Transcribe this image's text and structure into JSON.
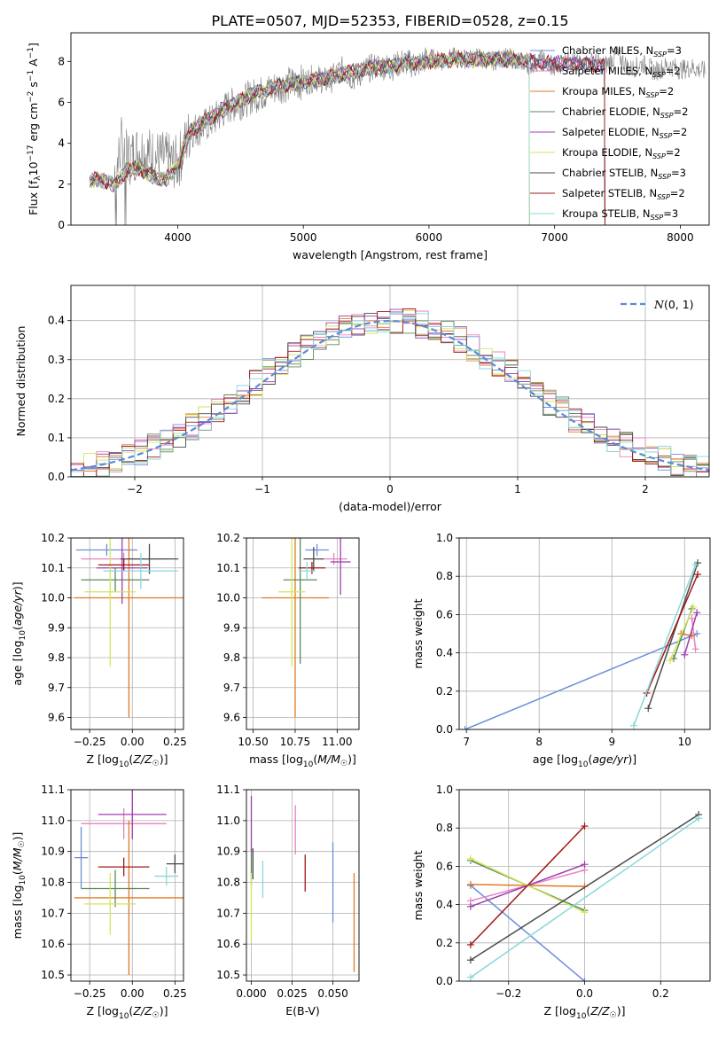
{
  "figure_title": "PLATE=0507, MJD=52353, FIBERID=0528, z=0.15",
  "colors": {
    "Chabrier MILES": "#6d8fd8",
    "Salpeter MILES": "#e882c0",
    "Kroupa MILES": "#e07a25",
    "Chabrier ELODIE": "#5c8a5c",
    "Salpeter ELODIE": "#a03cb0",
    "Kroupa ELODIE": "#d2e65a",
    "Chabrier STELIB": "#4a4a4a",
    "Salpeter STELIB": "#a01818",
    "Kroupa STELIB": "#88d8d8",
    "data": "#808080",
    "normal": "#5b8ad6"
  },
  "chart_data": [
    {
      "id": "spectrum",
      "type": "line",
      "title": "PLATE=0507, MJD=52353, FIBERID=0528, z=0.15",
      "xlabel": "wavelength [Angstrom, rest frame]",
      "ylabel": "Flux [f_λ 10^-17 erg cm^-2 s^-1 A^-1]",
      "xlim": [
        3150,
        8230
      ],
      "ylim": [
        0,
        9.4
      ],
      "xticks": [
        4000,
        5000,
        6000,
        7000,
        8000
      ],
      "yticks": [
        0,
        2,
        4,
        6,
        8
      ],
      "grid": false,
      "legend_position": "upper-right",
      "data_series": {
        "name": "data",
        "x": [
          3300,
          3400,
          3500,
          3550,
          3600,
          3700,
          3800,
          3900,
          4000,
          4100,
          4200,
          4300,
          4400,
          4500,
          4600,
          4700,
          4800,
          4900,
          5000,
          5100,
          5200,
          5300,
          5400,
          5500,
          5600,
          5700,
          5800,
          5900,
          6000,
          6100,
          6200,
          6300,
          6400,
          6500,
          6600,
          6700,
          6800,
          6900,
          7000,
          7100,
          7200,
          7300,
          7400,
          7500,
          7600,
          7700,
          7800,
          7900,
          8000,
          8100,
          8200
        ],
        "y": [
          2.2,
          2.3,
          2.2,
          4.0,
          3.2,
          3.7,
          3.4,
          3.2,
          3.0,
          4.6,
          4.8,
          5.2,
          5.8,
          6.0,
          6.3,
          6.5,
          6.8,
          6.9,
          7.0,
          7.2,
          7.0,
          7.6,
          7.2,
          7.6,
          7.8,
          7.7,
          8.0,
          7.8,
          8.2,
          8.0,
          8.2,
          8.1,
          8.2,
          8.0,
          8.2,
          8.1,
          7.8,
          8.1,
          7.6,
          8.2,
          7.8,
          8.0,
          7.8,
          8.3,
          7.6,
          7.9,
          7.5,
          7.8,
          7.6,
          7.7,
          7.5
        ]
      },
      "model_shape": {
        "x": [
          3300,
          3400,
          3500,
          3600,
          3700,
          3800,
          3900,
          4000,
          4100,
          4200,
          4300,
          4400,
          4500,
          4600,
          4700,
          4800,
          4900,
          5000,
          5200,
          5400,
          5600,
          5800,
          6000,
          6200,
          6400,
          6600,
          6800,
          7000,
          7200,
          7400
        ],
        "y": [
          2.2,
          2.2,
          2.0,
          2.7,
          2.8,
          2.4,
          2.2,
          2.9,
          4.6,
          5.0,
          5.4,
          5.8,
          6.1,
          6.4,
          6.6,
          6.8,
          6.9,
          7.0,
          7.2,
          7.5,
          7.7,
          7.9,
          8.0,
          8.1,
          8.1,
          8.1,
          8.0,
          7.9,
          7.9,
          7.8
        ]
      },
      "series": [
        {
          "name": "Chabrier MILES, N_SSP=3"
        },
        {
          "name": "Salpeter MILES, N_SSP=2"
        },
        {
          "name": "Kroupa MILES, N_SSP=2"
        },
        {
          "name": "Chabrier ELODIE, N_SSP=2"
        },
        {
          "name": "Salpeter ELODIE, N_SSP=2"
        },
        {
          "name": "Kroupa ELODIE, N_SSP=2"
        },
        {
          "name": "Chabrier STELIB, N_SSP=3"
        },
        {
          "name": "Salpeter STELIB, N_SSP=2"
        },
        {
          "name": "Kroupa STELIB, N_SSP=3"
        }
      ]
    },
    {
      "id": "residuals",
      "type": "line",
      "xlabel": "(data-model)/error",
      "ylabel": "Normed distribution",
      "xlim": [
        -2.5,
        2.5
      ],
      "ylim": [
        0,
        0.49
      ],
      "xticks": [
        -2,
        -1,
        0,
        1,
        2
      ],
      "yticks": [
        0.0,
        0.1,
        0.2,
        0.3,
        0.4
      ],
      "grid": true,
      "legend_position": "upper-right",
      "legend": "N(0,1)",
      "bin_width": 0.1,
      "histogram_envelope_centers": [
        -2.45,
        -2.35,
        -2.25,
        -2.15,
        -2.05,
        -1.95,
        -1.85,
        -1.75,
        -1.65,
        -1.55,
        -1.45,
        -1.35,
        -1.25,
        -1.15,
        -1.05,
        -0.95,
        -0.85,
        -0.75,
        -0.65,
        -0.55,
        -0.45,
        -0.35,
        -0.25,
        -0.15,
        -0.05,
        0.05,
        0.15,
        0.25,
        0.35,
        0.45,
        0.55,
        0.65,
        0.75,
        0.85,
        0.95,
        1.05,
        1.15,
        1.25,
        1.35,
        1.45,
        1.55,
        1.65,
        1.75,
        1.85,
        1.95,
        2.05,
        2.15,
        2.25,
        2.35,
        2.45
      ],
      "histogram_envelope_values": [
        0.02,
        0.025,
        0.035,
        0.045,
        0.055,
        0.065,
        0.08,
        0.095,
        0.11,
        0.13,
        0.15,
        0.17,
        0.19,
        0.21,
        0.24,
        0.27,
        0.29,
        0.31,
        0.33,
        0.35,
        0.37,
        0.38,
        0.39,
        0.4,
        0.4,
        0.4,
        0.4,
        0.39,
        0.38,
        0.37,
        0.35,
        0.33,
        0.31,
        0.29,
        0.27,
        0.24,
        0.21,
        0.19,
        0.17,
        0.15,
        0.13,
        0.11,
        0.095,
        0.08,
        0.065,
        0.055,
        0.045,
        0.035,
        0.03,
        0.025
      ]
    },
    {
      "id": "age-vs-Z",
      "type": "scatter",
      "xlabel": "Z [log10(Z/Z☉)]",
      "ylabel": "age  [log10(age/yr)]",
      "xlim": [
        -0.36,
        0.3
      ],
      "ylim": [
        9.56,
        10.2
      ],
      "xticks": [
        -0.25,
        0.0,
        0.25
      ],
      "yticks": [
        9.6,
        9.7,
        9.8,
        9.9,
        10.0,
        10.1,
        10.2
      ],
      "grid": true,
      "points": [
        {
          "model": "Chabrier MILES",
          "x": -0.15,
          "y": 10.16,
          "xerr": 0.18,
          "yerr": 0.02
        },
        {
          "model": "Salpeter MILES",
          "x": -0.05,
          "y": 10.13,
          "xerr": 0.25,
          "yerr": 0.02
        },
        {
          "model": "Kroupa MILES",
          "x": -0.02,
          "y": 10.0,
          "xerr": 0.32,
          "yerr": 0.4
        },
        {
          "model": "Chabrier ELODIE",
          "x": -0.1,
          "y": 10.06,
          "xerr": 0.2,
          "yerr": 0.04
        },
        {
          "model": "Salpeter ELODIE",
          "x": -0.06,
          "y": 10.1,
          "xerr": 0.15,
          "yerr": 0.12
        },
        {
          "model": "Kroupa ELODIE",
          "x": -0.13,
          "y": 10.02,
          "xerr": 0.15,
          "yerr": 0.25
        },
        {
          "model": "Chabrier STELIB",
          "x": 0.1,
          "y": 10.13,
          "xerr": 0.17,
          "yerr": 0.05
        },
        {
          "model": "Salpeter STELIB",
          "x": -0.05,
          "y": 10.11,
          "xerr": 0.15,
          "yerr": 0.02
        },
        {
          "model": "Kroupa STELIB",
          "x": 0.05,
          "y": 10.09,
          "xerr": 0.22,
          "yerr": 0.06
        }
      ]
    },
    {
      "id": "age-vs-mass",
      "type": "scatter",
      "xlabel": "mass [log10(M/M☉)]",
      "ylabel": "",
      "xlim": [
        10.46,
        11.13
      ],
      "ylim": [
        9.56,
        10.2
      ],
      "xticks": [
        10.5,
        10.75,
        11.0
      ],
      "yticks": [
        9.6,
        9.7,
        9.8,
        9.9,
        10.0,
        10.1,
        10.2
      ],
      "grid": true,
      "points": [
        {
          "model": "Chabrier MILES",
          "x": 10.88,
          "y": 10.16,
          "xerr": 0.07,
          "yerr": 0.02
        },
        {
          "model": "Salpeter MILES",
          "x": 10.98,
          "y": 10.13,
          "xerr": 0.08,
          "yerr": 0.02
        },
        {
          "model": "Kroupa MILES",
          "x": 10.75,
          "y": 10.0,
          "xerr": 0.2,
          "yerr": 0.4
        },
        {
          "model": "Chabrier ELODIE",
          "x": 10.78,
          "y": 10.06,
          "xerr": 0.1,
          "yerr": 0.28
        },
        {
          "model": "Salpeter ELODIE",
          "x": 11.02,
          "y": 10.12,
          "xerr": 0.06,
          "yerr": 0.11
        },
        {
          "model": "Kroupa ELODIE",
          "x": 10.73,
          "y": 10.02,
          "xerr": 0.08,
          "yerr": 0.25
        },
        {
          "model": "Chabrier STELIB",
          "x": 10.86,
          "y": 10.13,
          "xerr": 0.06,
          "yerr": 0.04
        },
        {
          "model": "Salpeter STELIB",
          "x": 10.85,
          "y": 10.1,
          "xerr": 0.08,
          "yerr": 0.02
        },
        {
          "model": "Kroupa STELIB",
          "x": 10.82,
          "y": 10.09,
          "xerr": 0.05,
          "yerr": 0.03
        }
      ]
    },
    {
      "id": "weight-vs-age",
      "type": "line",
      "xlabel": "age  [log10(age/yr)]",
      "ylabel": "mass weight",
      "xlim": [
        6.9,
        10.35
      ],
      "ylim": [
        0,
        1
      ],
      "xticks": [
        7,
        8,
        9,
        10
      ],
      "yticks": [
        0.0,
        0.2,
        0.4,
        0.6,
        0.8,
        1.0
      ],
      "grid": true,
      "series": [
        {
          "model": "Chabrier MILES",
          "x": [
            6.98,
            10.17
          ],
          "y": [
            0.0,
            0.5
          ]
        },
        {
          "model": "Salpeter MILES",
          "x": [
            10.1,
            10.15
          ],
          "y": [
            0.58,
            0.42
          ]
        },
        {
          "model": "Kroupa MILES",
          "x": [
            9.95,
            10.1
          ],
          "y": [
            0.5,
            0.49
          ]
        },
        {
          "model": "Chabrier ELODIE",
          "x": [
            9.85,
            10.1
          ],
          "y": [
            0.37,
            0.63
          ]
        },
        {
          "model": "Salpeter ELODIE",
          "x": [
            10.0,
            10.17
          ],
          "y": [
            0.39,
            0.61
          ]
        },
        {
          "model": "Kroupa ELODIE",
          "x": [
            9.8,
            10.12
          ],
          "y": [
            0.36,
            0.64
          ]
        },
        {
          "model": "Chabrier STELIB",
          "x": [
            9.5,
            10.18
          ],
          "y": [
            0.11,
            0.87
          ]
        },
        {
          "model": "Salpeter STELIB",
          "x": [
            9.48,
            10.18
          ],
          "y": [
            0.19,
            0.81
          ]
        },
        {
          "model": "Kroupa STELIB",
          "x": [
            9.3,
            10.15
          ],
          "y": [
            0.02,
            0.86
          ]
        }
      ]
    },
    {
      "id": "mass-vs-Z",
      "type": "scatter",
      "xlabel": "Z [log10(Z/Z☉)]",
      "ylabel": "mass [log10(M/M☉)]",
      "xlim": [
        -0.36,
        0.3
      ],
      "ylim": [
        10.48,
        11.1
      ],
      "xticks": [
        -0.25,
        0.0,
        0.25
      ],
      "yticks": [
        10.5,
        10.6,
        10.7,
        10.8,
        10.9,
        11.0,
        11.1
      ],
      "grid": true,
      "points": [
        {
          "model": "Chabrier MILES",
          "x": -0.3,
          "y": 10.88,
          "xerr": 0.04,
          "yerr": 0.1
        },
        {
          "model": "Salpeter MILES",
          "x": -0.05,
          "y": 10.99,
          "xerr": 0.25,
          "yerr": 0.05
        },
        {
          "model": "Kroupa MILES",
          "x": -0.02,
          "y": 10.75,
          "xerr": 0.32,
          "yerr": 0.25
        },
        {
          "model": "Chabrier ELODIE",
          "x": -0.1,
          "y": 10.78,
          "xerr": 0.2,
          "yerr": 0.06
        },
        {
          "model": "Salpeter ELODIE",
          "x": 0.0,
          "y": 11.02,
          "xerr": 0.2,
          "yerr": 0.08
        },
        {
          "model": "Kroupa ELODIE",
          "x": -0.13,
          "y": 10.73,
          "xerr": 0.15,
          "yerr": 0.1
        },
        {
          "model": "Chabrier STELIB",
          "x": 0.25,
          "y": 10.86,
          "xerr": 0.05,
          "yerr": 0.03
        },
        {
          "model": "Salpeter STELIB",
          "x": -0.05,
          "y": 10.85,
          "xerr": 0.15,
          "yerr": 0.03
        },
        {
          "model": "Kroupa STELIB",
          "x": 0.2,
          "y": 10.82,
          "xerr": 0.07,
          "yerr": 0.03
        }
      ]
    },
    {
      "id": "mass-vs-EBV",
      "type": "scatter",
      "xlabel": "E(B-V)",
      "ylabel": "",
      "xlim": [
        -0.003,
        0.066
      ],
      "ylim": [
        10.48,
        11.1
      ],
      "xticks": [
        0.0,
        0.025,
        0.05
      ],
      "yticks": [
        10.5,
        10.6,
        10.7,
        10.8,
        10.9,
        11.0,
        11.1
      ],
      "grid": true,
      "points": [
        {
          "model": "Chabrier MILES",
          "x": 0.05,
          "y": 10.8,
          "yerr": 0.13
        },
        {
          "model": "Salpeter MILES",
          "x": 0.027,
          "y": 10.97,
          "yerr": 0.08
        },
        {
          "model": "Kroupa MILES",
          "x": 0.063,
          "y": 10.67,
          "yerr": 0.16
        },
        {
          "model": "Chabrier ELODIE",
          "x": 0.0,
          "y": 10.85,
          "yerr": 0.06
        },
        {
          "model": "Salpeter ELODIE",
          "x": 0.0,
          "y": 10.99,
          "yerr": 0.09
        },
        {
          "model": "Kroupa ELODIE",
          "x": 0.0,
          "y": 10.72,
          "yerr": 0.11
        },
        {
          "model": "Chabrier STELIB",
          "x": 0.001,
          "y": 10.86,
          "yerr": 0.05
        },
        {
          "model": "Salpeter STELIB",
          "x": 0.033,
          "y": 10.83,
          "yerr": 0.06
        },
        {
          "model": "Kroupa STELIB",
          "x": 0.007,
          "y": 10.81,
          "yerr": 0.06
        }
      ]
    },
    {
      "id": "weight-vs-Z",
      "type": "line",
      "xlabel": "Z [log10(Z/Z☉)]",
      "ylabel": "mass weight",
      "xlim": [
        -0.33,
        0.33
      ],
      "ylim": [
        0,
        1
      ],
      "xticks": [
        -0.2,
        0.0,
        0.2
      ],
      "yticks": [
        0.0,
        0.2,
        0.4,
        0.6,
        0.8,
        1.0
      ],
      "grid": true,
      "series": [
        {
          "model": "Chabrier MILES",
          "x": [
            -0.3,
            0.0
          ],
          "y": [
            0.5,
            0.0
          ]
        },
        {
          "model": "Salpeter MILES",
          "x": [
            -0.3,
            0.0
          ],
          "y": [
            0.42,
            0.58
          ]
        },
        {
          "model": "Kroupa MILES",
          "x": [
            -0.3,
            0.0
          ],
          "y": [
            0.505,
            0.495
          ]
        },
        {
          "model": "Chabrier ELODIE",
          "x": [
            -0.3,
            0.0
          ],
          "y": [
            0.63,
            0.37
          ]
        },
        {
          "model": "Salpeter ELODIE",
          "x": [
            -0.3,
            0.0
          ],
          "y": [
            0.39,
            0.61
          ]
        },
        {
          "model": "Kroupa ELODIE",
          "x": [
            -0.3,
            0.0
          ],
          "y": [
            0.64,
            0.36
          ]
        },
        {
          "model": "Chabrier STELIB",
          "x": [
            -0.3,
            0.3
          ],
          "y": [
            0.11,
            0.87
          ]
        },
        {
          "model": "Salpeter STELIB",
          "x": [
            -0.3,
            0.0
          ],
          "y": [
            0.19,
            0.81
          ]
        },
        {
          "model": "Kroupa STELIB",
          "x": [
            -0.3,
            0.3
          ],
          "y": [
            0.02,
            0.85
          ]
        }
      ]
    }
  ]
}
